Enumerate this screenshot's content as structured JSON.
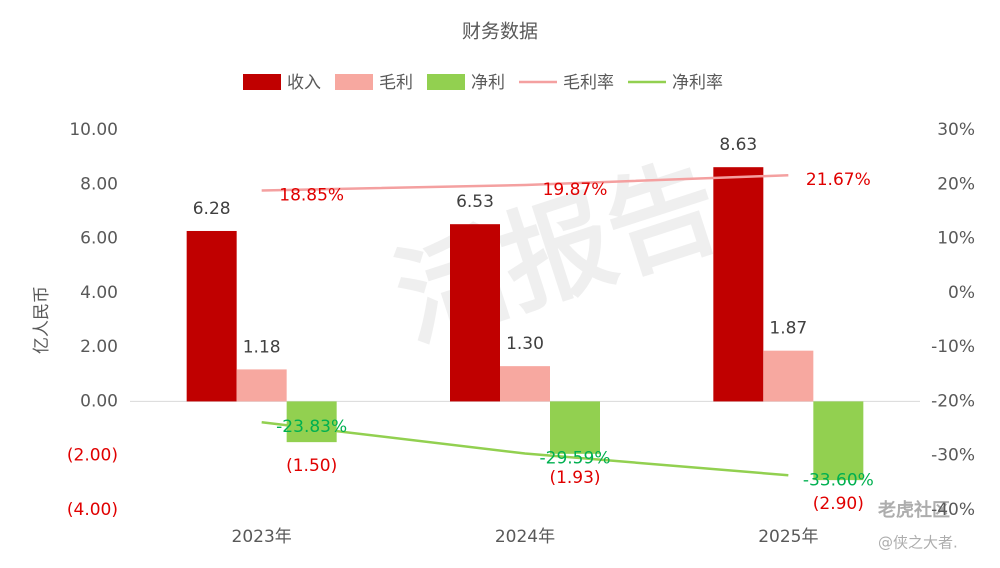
{
  "chart_data": {
    "type": "bar-line",
    "title": "财务数据",
    "y_label": "亿人民币",
    "categories": [
      "2023年",
      "2024年",
      "2025年"
    ],
    "series": [
      {
        "name": "收入",
        "type": "bar",
        "color": "#c00000",
        "values": [
          6.28,
          6.53,
          8.63
        ],
        "value_labels": [
          "6.28",
          "6.53",
          "8.63"
        ]
      },
      {
        "name": "毛利",
        "type": "bar",
        "color": "#f7a8a0",
        "values": [
          1.18,
          1.3,
          1.87
        ],
        "value_labels": [
          "1.18",
          "1.30",
          "1.87"
        ]
      },
      {
        "name": "净利",
        "type": "bar",
        "color": "#92d050",
        "values": [
          -1.5,
          -1.93,
          -2.9
        ],
        "value_labels": [
          "(1.50)",
          "(1.93)",
          "(2.90)"
        ]
      },
      {
        "name": "毛利率",
        "type": "line",
        "axis": "y2",
        "color": "#f4a0a0",
        "values": [
          18.85,
          19.87,
          21.67
        ],
        "value_labels": [
          "18.85%",
          "19.87%",
          "21.67%"
        ]
      },
      {
        "name": "净利率",
        "type": "line",
        "axis": "y2",
        "color": "#92d050",
        "values": [
          -23.83,
          -29.59,
          -33.6
        ],
        "value_labels": [
          "-23.83%",
          "-29.59%",
          "-33.60%"
        ]
      }
    ],
    "ylim": [
      -4,
      10
    ],
    "yticks": [
      {
        "value": -4,
        "label": "(4.00)"
      },
      {
        "value": -2,
        "label": "(2.00)"
      },
      {
        "value": 0,
        "label": "0.00"
      },
      {
        "value": 2,
        "label": "2.00"
      },
      {
        "value": 4,
        "label": "4.00"
      },
      {
        "value": 6,
        "label": "6.00"
      },
      {
        "value": 8,
        "label": "8.00"
      },
      {
        "value": 10,
        "label": "10.00"
      }
    ],
    "y2lim": [
      -40,
      30
    ],
    "y2ticks": [
      {
        "value": -40,
        "label": "-40%"
      },
      {
        "value": -30,
        "label": "-30%"
      },
      {
        "value": -20,
        "label": "-20%"
      },
      {
        "value": -10,
        "label": "-10%"
      },
      {
        "value": 0,
        "label": "0%"
      },
      {
        "value": 10,
        "label": "10%"
      },
      {
        "value": 20,
        "label": "20%"
      },
      {
        "value": 30,
        "label": "30%"
      }
    ],
    "legend": "top",
    "watermarks": [
      "活报告",
      "老虎社区",
      "@侠之大者."
    ]
  }
}
